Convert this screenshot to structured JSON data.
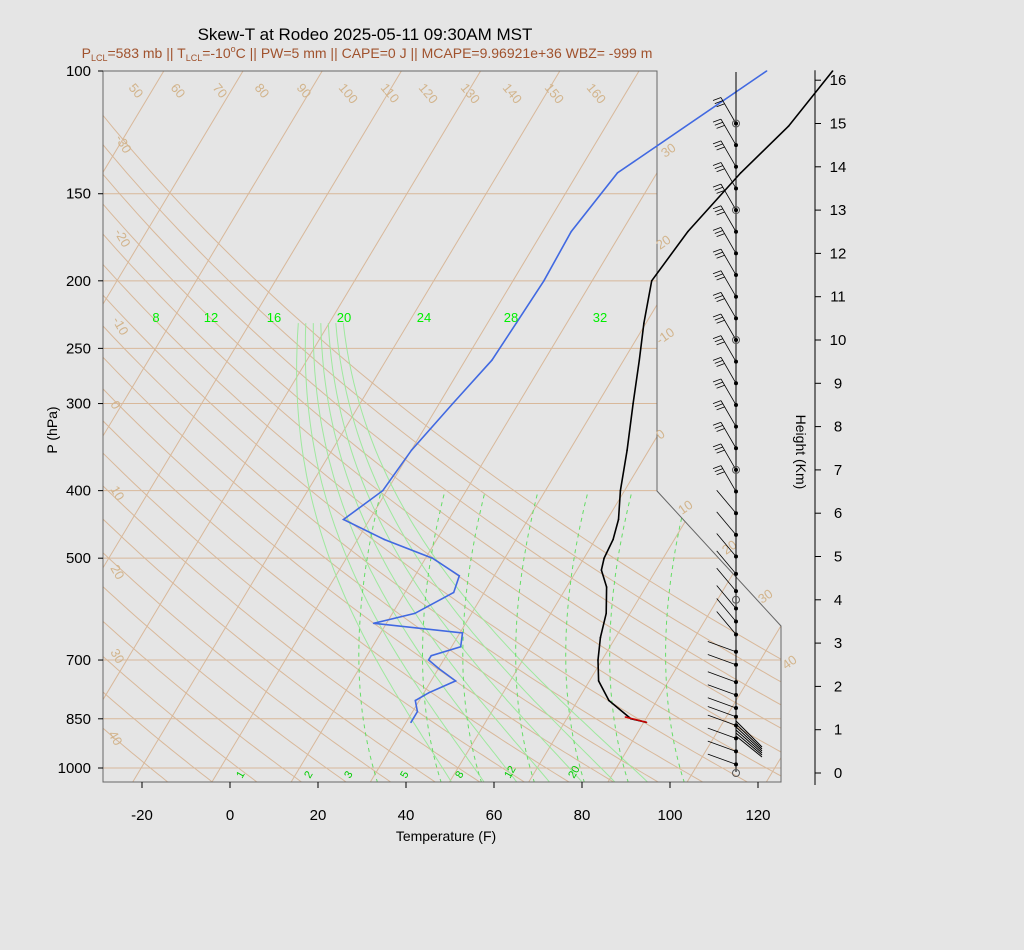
{
  "chart_data": {
    "type": "line",
    "title": "Skew-T at Rodeo 2025-05-11 09:30AM MST",
    "subtitle": {
      "parts": [
        {
          "t": "P",
          "s": "base"
        },
        {
          "t": "LCL",
          "s": "sub"
        },
        {
          "t": "=583 mb || T",
          "s": "base"
        },
        {
          "t": "LCL",
          "s": "sub"
        },
        {
          "t": "=-10",
          "s": "base"
        },
        {
          "t": "o",
          "s": "sup"
        },
        {
          "t": "C || PW=5 mm || CAPE=0 J || MCAPE=9.96921e+36 WBZ= -999 m",
          "s": "base"
        }
      ]
    },
    "xlabel": "Temperature (F)",
    "ylabel": "P (hPa)",
    "ylabel_right": "Height (Km)",
    "xlim": [
      -29,
      125
    ],
    "ylim": [
      1050,
      100
    ],
    "xticks": [
      -20,
      0,
      20,
      40,
      60,
      80,
      100,
      120
    ],
    "yticks": [
      100,
      150,
      200,
      250,
      300,
      400,
      500,
      700,
      850,
      1000
    ],
    "height_ticks": [
      0,
      1,
      2,
      3,
      4,
      5,
      6,
      7,
      8,
      9,
      10,
      11,
      12,
      13,
      14,
      15,
      16
    ],
    "isotherm_labels": [
      "-30",
      "-20",
      "-10",
      "0",
      "10",
      "20",
      "30",
      "40"
    ],
    "dry_adiabat_labels": [
      "-20",
      "-10",
      "0",
      "10",
      "20",
      "30",
      "40",
      "50",
      "60",
      "70",
      "80",
      "90",
      "100",
      "110",
      "120",
      "130",
      "140",
      "150",
      "160"
    ],
    "moist_adiabat_labels": [
      "8",
      "12",
      "16",
      "20",
      "24",
      "28",
      "32"
    ],
    "mixing_ratio_labels": [
      "1",
      "2",
      "3",
      "5",
      "8",
      "12",
      "20"
    ],
    "series": [
      {
        "name": "",
        "role": "temperature",
        "color": "#000000",
        "points": [
          [
            860,
            86.5
          ],
          [
            850,
            82.5
          ],
          [
            800,
            75
          ],
          [
            750,
            70
          ],
          [
            700,
            67
          ],
          [
            650,
            64.5
          ],
          [
            600,
            62.5
          ],
          [
            550,
            59
          ],
          [
            520,
            55.5
          ],
          [
            500,
            54.5
          ],
          [
            470,
            54
          ],
          [
            440,
            52.5
          ],
          [
            400,
            49
          ],
          [
            350,
            45
          ],
          [
            300,
            40
          ],
          [
            260,
            35.5
          ],
          [
            230,
            31.5
          ],
          [
            200,
            27.5
          ],
          [
            170,
            29
          ],
          [
            140,
            33
          ],
          [
            120,
            37.5
          ],
          [
            100,
            40
          ]
        ]
      },
      {
        "name": "",
        "role": "dewpoint",
        "color": "#4169e1",
        "points": [
          [
            860,
            33
          ],
          [
            830,
            33
          ],
          [
            800,
            31
          ],
          [
            780,
            33
          ],
          [
            750,
            37.5
          ],
          [
            720,
            32
          ],
          [
            700,
            28.5
          ],
          [
            690,
            28.5
          ],
          [
            670,
            34
          ],
          [
            640,
            32.5
          ],
          [
            620,
            11
          ],
          [
            600,
            19
          ],
          [
            560,
            25
          ],
          [
            530,
            24
          ],
          [
            500,
            15.5
          ],
          [
            470,
            2
          ],
          [
            440,
            -10
          ],
          [
            400,
            -5
          ],
          [
            350,
            -4
          ],
          [
            300,
            -1
          ],
          [
            260,
            2
          ],
          [
            230,
            2.5
          ],
          [
            200,
            3
          ],
          [
            170,
            2.5
          ],
          [
            140,
            5
          ],
          [
            100,
            25
          ]
        ]
      },
      {
        "name": "",
        "role": "parcel",
        "color": "#cc0000",
        "points": [
          [
            860,
            86.5
          ],
          [
            845,
            81
          ]
        ]
      }
    ],
    "wind_barbs": {
      "color": "#000000",
      "base_x_km": 16,
      "heights_km": [
        0.2,
        0.5,
        0.8,
        1.1,
        1.3,
        1.5,
        1.8,
        2.1,
        2.5,
        2.8,
        3.2,
        3.5,
        3.8,
        4.2,
        4.6,
        5.0,
        5.5,
        6.0,
        6.5,
        7.0,
        7.5,
        8.0,
        8.5,
        9.0,
        9.5,
        10.0,
        10.5,
        11.0,
        11.5,
        12.0,
        12.5,
        13.0,
        13.5,
        14.0,
        14.5,
        15.0
      ]
    }
  }
}
